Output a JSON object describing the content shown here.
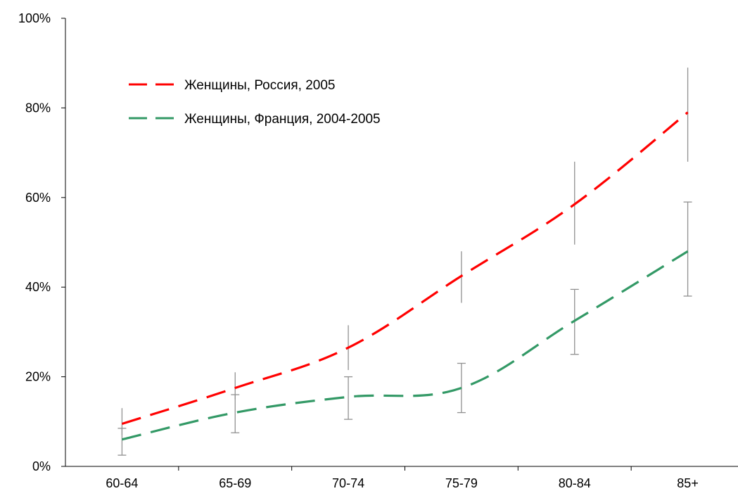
{
  "chart_data": {
    "type": "line",
    "title": "",
    "xlabel": "",
    "ylabel": "",
    "categories": [
      "60-64",
      "65-69",
      "70-74",
      "75-79",
      "80-84",
      "85+"
    ],
    "ylim": [
      0,
      100
    ],
    "y_ticks": [
      0,
      20,
      40,
      60,
      80,
      100
    ],
    "y_tick_labels": [
      "0%",
      "20%",
      "40%",
      "60%",
      "80%",
      "100%"
    ],
    "y_unit": "%",
    "grid": false,
    "legend": {
      "placement": "top-left"
    },
    "series": [
      {
        "name": "Женщины, Россия, 2005",
        "color": "#ff0000",
        "style": "dashed",
        "values": [
          9.5,
          17.5,
          26.5,
          42.5,
          58.5,
          79
        ],
        "error_low": [
          7,
          15,
          21.5,
          36.5,
          49.5,
          68
        ],
        "error_high": [
          13,
          21,
          31.5,
          48,
          68,
          89
        ]
      },
      {
        "name": "Женщины, Франция, 2004-2005",
        "color": "#339966",
        "style": "dashed",
        "values": [
          6,
          12,
          15.5,
          17.5,
          32.5,
          48
        ],
        "error_low": [
          2.5,
          7.5,
          10.5,
          12,
          25,
          38
        ],
        "error_high": [
          8.5,
          16,
          20,
          23,
          39.5,
          59
        ]
      }
    ],
    "error_bar_color": "#909090"
  }
}
